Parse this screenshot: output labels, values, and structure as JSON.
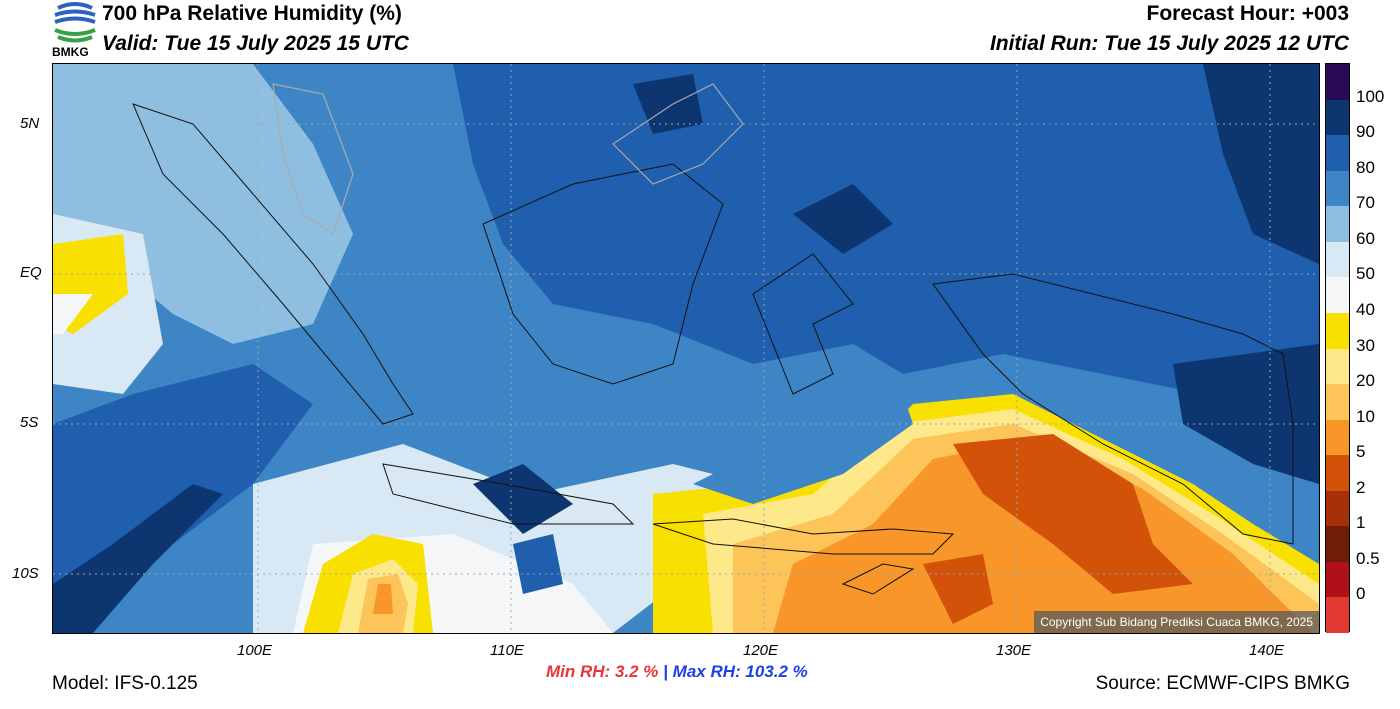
{
  "header": {
    "title": "700 hPa Relative Humidity (%)",
    "valid": "Valid: Tue 15 July 2025 15 UTC",
    "forecast_hour": "Forecast Hour: +003",
    "initial_run": "Initial Run: Tue 15 July 2025 12 UTC",
    "logo_text": "BMKG"
  },
  "map": {
    "lat_labels": [
      "5N",
      "EQ",
      "5S",
      "10S"
    ],
    "lon_labels": [
      "100E",
      "110E",
      "120E",
      "130E",
      "140E"
    ],
    "copyright": "Copyright Sub Bidang Prediksi Cuaca BMKG, 2025"
  },
  "colorbar": {
    "labels": [
      "100",
      "90",
      "80",
      "70",
      "60",
      "50",
      "40",
      "30",
      "20",
      "10",
      "5",
      "2",
      "1",
      "0.5",
      "0"
    ],
    "colors": [
      "#2a0a55",
      "#0d3570",
      "#1f5fae",
      "#3e85c6",
      "#8fbfe0",
      "#d8e8f4",
      "#f4f6f8",
      "#f8e000",
      "#fde88a",
      "#fdc45a",
      "#f8962a",
      "#d2520a",
      "#a63008",
      "#6e1e06",
      "#b01018",
      "#e23a30"
    ]
  },
  "stats": {
    "min_label": "Min RH:",
    "min_value": "3.2 %",
    "separator": "|",
    "max_label": "Max RH:",
    "max_value": "103.2 %"
  },
  "footer": {
    "model": "Model: IFS-0.125",
    "source": "Source: ECMWF-CIPS BMKG"
  }
}
